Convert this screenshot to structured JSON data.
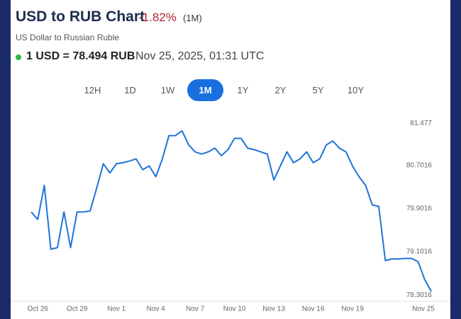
{
  "header": {
    "title": "USD to RUB Chart",
    "change": "-1.82%",
    "period": "(1M)",
    "subtitle": "US Dollar to Russian Ruble",
    "rate": "1 USD = 78.494 RUB",
    "timestamp": "Nov 25, 2025, 01:31 UTC"
  },
  "ranges": {
    "options": [
      "12H",
      "1D",
      "1W",
      "1M",
      "1Y",
      "2Y",
      "5Y",
      "10Y"
    ],
    "active": "1M"
  },
  "chart_data": {
    "type": "line",
    "categories": [
      null,
      "Oct 26",
      null,
      null,
      null,
      null,
      null,
      "Oct 29",
      null,
      null,
      null,
      null,
      null,
      "Nov 1",
      null,
      null,
      null,
      null,
      null,
      "Nov 4",
      null,
      null,
      null,
      null,
      null,
      "Nov 7",
      null,
      null,
      null,
      null,
      null,
      "Nov 10",
      null,
      null,
      null,
      null,
      null,
      "Nov 13",
      null,
      null,
      null,
      null,
      null,
      "Nov 16",
      null,
      null,
      null,
      null,
      null,
      "Nov 19",
      null,
      null,
      null,
      null,
      null,
      null,
      null,
      null,
      null,
      null,
      null,
      "Nov 25"
    ],
    "series": [
      {
        "name": "USD/RUB",
        "color": "#1f74d6",
        "values": [
          79.84,
          79.7,
          80.33,
          79.15,
          79.18,
          79.84,
          79.18,
          79.84,
          79.84,
          79.86,
          80.29,
          80.73,
          80.56,
          80.73,
          80.75,
          80.78,
          80.82,
          80.62,
          80.69,
          80.49,
          80.82,
          81.25,
          81.25,
          81.34,
          81.08,
          80.95,
          80.91,
          80.95,
          81.02,
          80.88,
          80.99,
          81.2,
          81.2,
          81.02,
          80.99,
          80.95,
          80.91,
          80.43,
          80.69,
          80.95,
          80.75,
          80.82,
          80.95,
          80.75,
          80.82,
          81.08,
          81.15,
          81.02,
          80.95,
          80.69,
          80.49,
          80.33,
          79.97,
          79.94,
          78.94,
          78.97,
          78.97,
          78.98,
          78.98,
          78.92,
          78.59,
          78.37
        ]
      }
    ],
    "ylim": [
      78.2,
      81.6
    ],
    "yticks": [
      78.3016,
      79.1016,
      79.9016,
      80.7016,
      81.477
    ],
    "grid": false
  }
}
